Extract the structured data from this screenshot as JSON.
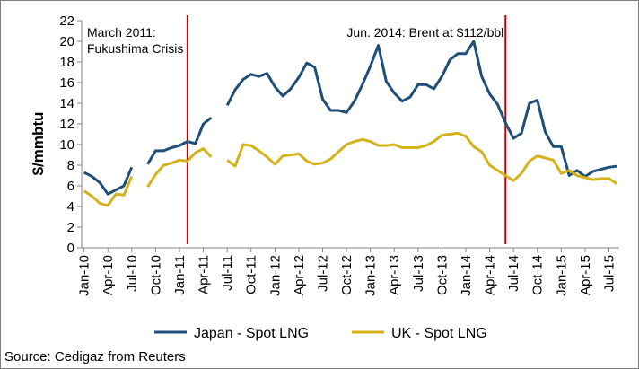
{
  "chart_data": {
    "type": "line",
    "ylabel": "$/mmbtu",
    "ylim": [
      0,
      22
    ],
    "yticks": [
      0,
      2,
      4,
      6,
      8,
      10,
      12,
      14,
      16,
      18,
      20,
      22
    ],
    "x": [
      "Jan-10",
      "Feb-10",
      "Mar-10",
      "Apr-10",
      "May-10",
      "Jun-10",
      "Jul-10",
      "Aug-10",
      "Sep-10",
      "Oct-10",
      "Nov-10",
      "Dec-10",
      "Jan-11",
      "Feb-11",
      "Mar-11",
      "Apr-11",
      "May-11",
      "Jun-11",
      "Jul-11",
      "Aug-11",
      "Sep-11",
      "Oct-11",
      "Nov-11",
      "Dec-11",
      "Jan-12",
      "Feb-12",
      "Mar-12",
      "Apr-12",
      "May-12",
      "Jun-12",
      "Jul-12",
      "Aug-12",
      "Sep-12",
      "Oct-12",
      "Nov-12",
      "Dec-12",
      "Jan-13",
      "Feb-13",
      "Mar-13",
      "Apr-13",
      "May-13",
      "Jun-13",
      "Jul-13",
      "Aug-13",
      "Sep-13",
      "Oct-13",
      "Nov-13",
      "Dec-13",
      "Jan-14",
      "Feb-14",
      "Mar-14",
      "Apr-14",
      "May-14",
      "Jun-14",
      "Jul-14",
      "Aug-14",
      "Sep-14",
      "Oct-14",
      "Nov-14",
      "Dec-14",
      "Jan-15",
      "Feb-15",
      "Mar-15",
      "Apr-15",
      "May-15",
      "Jun-15",
      "Jul-15",
      "Aug-15"
    ],
    "xtick_labels": [
      "Jan-10",
      "Apr-10",
      "Jul-10",
      "Oct-10",
      "Jan-11",
      "Apr-11",
      "Jul-11",
      "Oct-11",
      "Jan-12",
      "Apr-12",
      "Jul-12",
      "Oct-12",
      "Jan-13",
      "Apr-13",
      "Jul-13",
      "Oct-13",
      "Jan-14",
      "Apr-14",
      "Jul-14",
      "Oct-14",
      "Jan-15",
      "Apr-15",
      "Jul-15"
    ],
    "series": [
      {
        "name": "Japan - Spot LNG",
        "color": "#1f4e79",
        "values": [
          7.3,
          6.9,
          6.3,
          5.2,
          5.6,
          6.0,
          7.8,
          null,
          8.1,
          9.4,
          9.4,
          9.7,
          9.9,
          10.3,
          10.1,
          12.0,
          12.6,
          null,
          13.8,
          15.3,
          16.3,
          16.8,
          16.6,
          16.9,
          15.6,
          14.7,
          15.4,
          16.5,
          17.9,
          17.5,
          14.4,
          13.3,
          13.3,
          13.1,
          14.2,
          15.8,
          17.6,
          19.6,
          16.1,
          15.0,
          14.2,
          14.6,
          15.8,
          15.8,
          15.4,
          16.6,
          18.2,
          18.8,
          18.8,
          20.0,
          16.6,
          14.9,
          13.9,
          12.1,
          10.6,
          11.1,
          14.0,
          14.3,
          11.2,
          9.8,
          9.8,
          7.0,
          7.5,
          6.9,
          7.4,
          7.6,
          7.8,
          7.9
        ]
      },
      {
        "name": "UK - Spot LNG",
        "color": "#d4b21c",
        "values": [
          5.5,
          5.0,
          4.3,
          4.1,
          5.2,
          5.1,
          6.9,
          null,
          5.9,
          7.1,
          8.0,
          8.2,
          8.5,
          8.4,
          9.2,
          9.6,
          8.8,
          null,
          8.5,
          7.9,
          10.0,
          9.9,
          9.4,
          8.8,
          8.1,
          8.9,
          9.0,
          9.1,
          8.4,
          8.1,
          8.2,
          8.6,
          9.3,
          10.0,
          10.3,
          10.5,
          10.3,
          9.9,
          9.9,
          10.0,
          9.7,
          9.7,
          9.7,
          9.9,
          10.3,
          10.9,
          11.0,
          11.1,
          10.8,
          9.8,
          9.3,
          8.0,
          7.5,
          7.0,
          6.5,
          7.2,
          8.4,
          8.9,
          8.7,
          8.5,
          7.2,
          7.5,
          7.0,
          6.8,
          6.6,
          6.7,
          6.7,
          6.2
        ]
      }
    ],
    "annotations": [
      {
        "x": "Feb-11",
        "lines": [
          "March 2011:",
          "Fukushima Crisis"
        ],
        "side": "left",
        "color": "#c00000"
      },
      {
        "x": "Jun-14",
        "lines": [
          "Jun. 2014: Brent at $112/bbl"
        ],
        "side": "left",
        "color": "#c00000"
      }
    ],
    "legend": {
      "placement": "bottom"
    },
    "grid": false
  },
  "source": "Source: Cedigaz from Reuters"
}
